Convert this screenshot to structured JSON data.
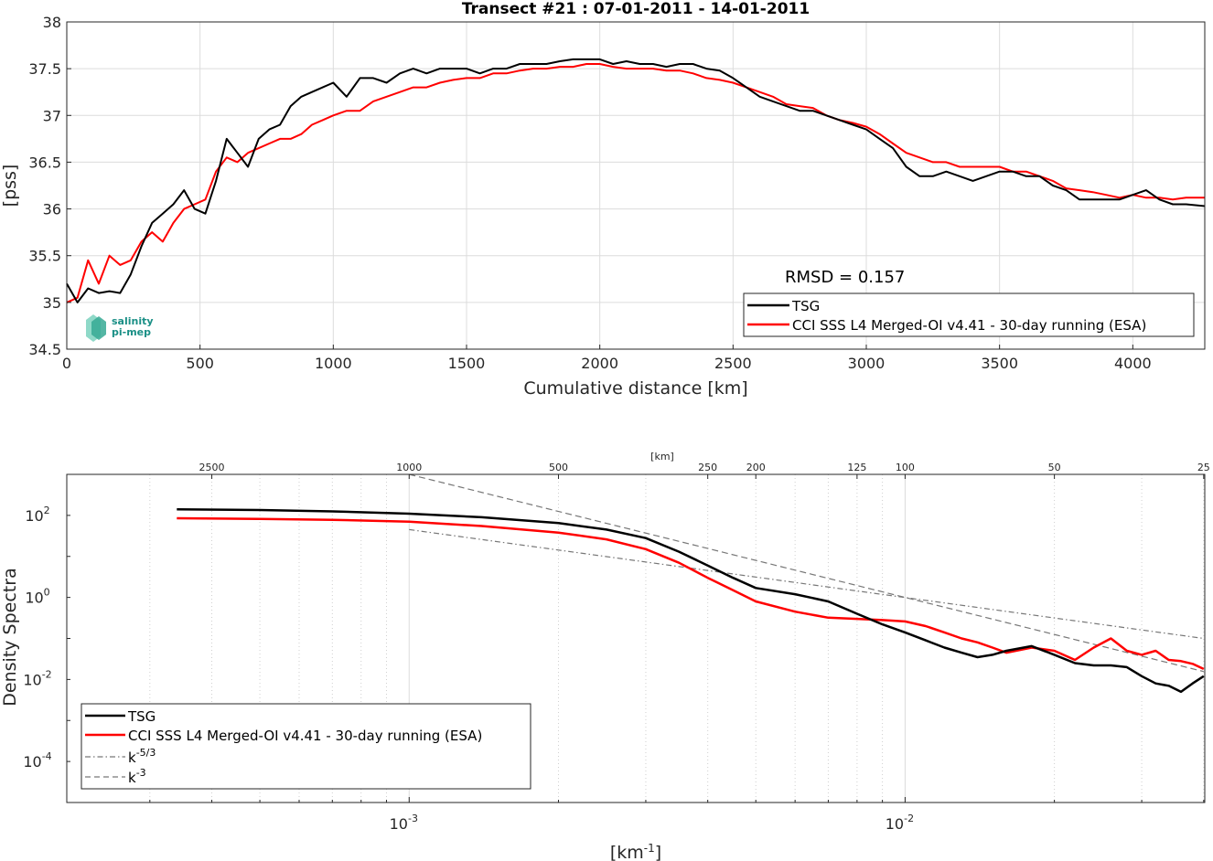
{
  "chart_data": [
    {
      "type": "line",
      "title": "Transect #21 : 07-01-2011 - 14-01-2011",
      "xlabel": "Cumulative distance [km]",
      "ylabel": "[pss]",
      "xlim": [
        0,
        4270
      ],
      "ylim": [
        34.5,
        38
      ],
      "xticks": [
        0,
        500,
        1000,
        1500,
        2000,
        2500,
        3000,
        3500,
        4000
      ],
      "yticks": [
        34.5,
        35,
        35.5,
        36,
        36.5,
        37,
        37.5,
        38
      ],
      "xtick_labels": [
        "0",
        "500",
        "1000",
        "1500",
        "2000",
        "2500",
        "3000",
        "3500",
        "4000"
      ],
      "ytick_labels": [
        "34.5",
        "35",
        "35.5",
        "36",
        "36.5",
        "37",
        "37.5",
        "38"
      ],
      "grid": true,
      "legend_position": "bottom-right",
      "annotation": "RMSD = 0.157",
      "logo_lines": [
        "salinity",
        "pi-mep"
      ],
      "series": [
        {
          "name": "TSG",
          "color": "#000000",
          "x": [
            0,
            40,
            80,
            120,
            160,
            200,
            240,
            280,
            320,
            360,
            400,
            440,
            480,
            520,
            560,
            600,
            640,
            680,
            720,
            760,
            800,
            840,
            880,
            920,
            960,
            1000,
            1050,
            1100,
            1150,
            1200,
            1250,
            1300,
            1350,
            1400,
            1450,
            1500,
            1550,
            1600,
            1650,
            1700,
            1750,
            1800,
            1850,
            1900,
            1950,
            2000,
            2050,
            2100,
            2150,
            2200,
            2250,
            2300,
            2350,
            2400,
            2450,
            2500,
            2550,
            2600,
            2650,
            2700,
            2750,
            2800,
            2850,
            2900,
            2950,
            3000,
            3050,
            3100,
            3150,
            3200,
            3250,
            3300,
            3350,
            3400,
            3450,
            3500,
            3550,
            3600,
            3650,
            3700,
            3750,
            3800,
            3850,
            3900,
            3950,
            4000,
            4050,
            4100,
            4150,
            4200,
            4270
          ],
          "y": [
            35.2,
            35.0,
            35.15,
            35.1,
            35.12,
            35.1,
            35.3,
            35.6,
            35.85,
            35.95,
            36.05,
            36.2,
            36.0,
            35.95,
            36.3,
            36.75,
            36.6,
            36.45,
            36.75,
            36.85,
            36.9,
            37.1,
            37.2,
            37.25,
            37.3,
            37.35,
            37.2,
            37.4,
            37.4,
            37.35,
            37.45,
            37.5,
            37.45,
            37.5,
            37.5,
            37.5,
            37.45,
            37.5,
            37.5,
            37.55,
            37.55,
            37.55,
            37.58,
            37.6,
            37.6,
            37.6,
            37.55,
            37.58,
            37.55,
            37.55,
            37.52,
            37.55,
            37.55,
            37.5,
            37.48,
            37.4,
            37.3,
            37.2,
            37.15,
            37.1,
            37.05,
            37.05,
            37.0,
            36.95,
            36.9,
            36.85,
            36.75,
            36.65,
            36.45,
            36.35,
            36.35,
            36.4,
            36.35,
            36.3,
            36.35,
            36.4,
            36.4,
            36.35,
            36.35,
            36.25,
            36.2,
            36.1,
            36.1,
            36.1,
            36.1,
            36.15,
            36.2,
            36.1,
            36.05,
            36.05,
            36.03
          ]
        },
        {
          "name": "CCI SSS L4 Merged-OI v4.41 - 30-day running (ESA)",
          "color": "#ff0000",
          "x": [
            0,
            40,
            80,
            120,
            160,
            200,
            240,
            280,
            320,
            360,
            400,
            440,
            480,
            520,
            560,
            600,
            640,
            680,
            720,
            760,
            800,
            840,
            880,
            920,
            960,
            1000,
            1050,
            1100,
            1150,
            1200,
            1250,
            1300,
            1350,
            1400,
            1450,
            1500,
            1550,
            1600,
            1650,
            1700,
            1750,
            1800,
            1850,
            1900,
            1950,
            2000,
            2050,
            2100,
            2150,
            2200,
            2250,
            2300,
            2350,
            2400,
            2450,
            2500,
            2550,
            2600,
            2650,
            2700,
            2750,
            2800,
            2850,
            2900,
            2950,
            3000,
            3050,
            3100,
            3150,
            3200,
            3250,
            3300,
            3350,
            3400,
            3450,
            3500,
            3550,
            3600,
            3650,
            3700,
            3750,
            3800,
            3850,
            3900,
            3950,
            4000,
            4050,
            4100,
            4150,
            4200,
            4270
          ],
          "y": [
            35.0,
            35.05,
            35.45,
            35.2,
            35.5,
            35.4,
            35.45,
            35.65,
            35.75,
            35.65,
            35.85,
            36.0,
            36.05,
            36.1,
            36.4,
            36.55,
            36.5,
            36.6,
            36.65,
            36.7,
            36.75,
            36.75,
            36.8,
            36.9,
            36.95,
            37.0,
            37.05,
            37.05,
            37.15,
            37.2,
            37.25,
            37.3,
            37.3,
            37.35,
            37.38,
            37.4,
            37.4,
            37.45,
            37.45,
            37.48,
            37.5,
            37.5,
            37.52,
            37.52,
            37.55,
            37.55,
            37.52,
            37.5,
            37.5,
            37.5,
            37.48,
            37.48,
            37.45,
            37.4,
            37.38,
            37.35,
            37.3,
            37.25,
            37.2,
            37.12,
            37.1,
            37.08,
            37.0,
            36.95,
            36.92,
            36.88,
            36.8,
            36.7,
            36.6,
            36.55,
            36.5,
            36.5,
            36.45,
            36.45,
            36.45,
            36.45,
            36.4,
            36.4,
            36.35,
            36.3,
            36.22,
            36.2,
            36.18,
            36.15,
            36.12,
            36.15,
            36.12,
            36.12,
            36.1,
            36.12,
            36.12
          ]
        }
      ]
    },
    {
      "type": "line",
      "xlabel": "[km⁻¹]",
      "ylabel": "Density Spectra",
      "x_scale": "log",
      "y_scale": "log",
      "xlim": [
        0.000204,
        0.0402
      ],
      "ylim": [
        1e-05,
        1000
      ],
      "xticks": [
        0.001,
        0.01
      ],
      "xtick_labels": [
        "10",
        "10"
      ],
      "xtick_exponents": [
        "-3",
        "-2"
      ],
      "yticks": [
        0.0001,
        0.01,
        1,
        100
      ],
      "ytick_labels": [
        "10",
        "10",
        "10",
        "10"
      ],
      "ytick_exponents": [
        "-4",
        "-2",
        "0",
        "2"
      ],
      "top_axis_label": "[km]",
      "top_ticks_km": [
        2500,
        1000,
        500,
        250,
        200,
        125,
        100,
        50,
        25
      ],
      "top_tick_labels": [
        "2500",
        "1000",
        "500",
        "250",
        "200",
        "125",
        "100",
        "50",
        "25"
      ],
      "grid": true,
      "legend_position": "bottom-left",
      "series": [
        {
          "name": "TSG",
          "color": "#000000",
          "x": [
            0.00034,
            0.0005,
            0.0007,
            0.001,
            0.0014,
            0.002,
            0.0025,
            0.003,
            0.0035,
            0.004,
            0.0045,
            0.005,
            0.006,
            0.007,
            0.008,
            0.009,
            0.01,
            0.011,
            0.012,
            0.013,
            0.014,
            0.015,
            0.016,
            0.018,
            0.02,
            0.022,
            0.024,
            0.026,
            0.028,
            0.03,
            0.032,
            0.034,
            0.036,
            0.038,
            0.04
          ],
          "y": [
            140,
            135,
            125,
            110,
            90,
            65,
            45,
            28,
            13,
            6,
            3,
            1.7,
            1.2,
            0.8,
            0.4,
            0.22,
            0.14,
            0.09,
            0.06,
            0.045,
            0.035,
            0.04,
            0.05,
            0.065,
            0.04,
            0.025,
            0.022,
            0.022,
            0.02,
            0.012,
            0.008,
            0.007,
            0.005,
            0.008,
            0.012
          ]
        },
        {
          "name": "CCI SSS L4 Merged-OI v4.41 - 30-day running (ESA)",
          "color": "#ff0000",
          "x": [
            0.00034,
            0.0005,
            0.0007,
            0.001,
            0.0014,
            0.002,
            0.0025,
            0.003,
            0.0035,
            0.004,
            0.0045,
            0.005,
            0.006,
            0.007,
            0.008,
            0.009,
            0.01,
            0.011,
            0.012,
            0.013,
            0.014,
            0.015,
            0.016,
            0.018,
            0.02,
            0.022,
            0.024,
            0.026,
            0.028,
            0.03,
            0.032,
            0.034,
            0.036,
            0.038,
            0.04
          ],
          "y": [
            85,
            82,
            78,
            70,
            55,
            38,
            26,
            15,
            7,
            3,
            1.5,
            0.8,
            0.45,
            0.32,
            0.3,
            0.28,
            0.26,
            0.2,
            0.14,
            0.1,
            0.08,
            0.06,
            0.045,
            0.06,
            0.05,
            0.03,
            0.06,
            0.1,
            0.05,
            0.04,
            0.05,
            0.03,
            0.028,
            0.024,
            0.018
          ]
        },
        {
          "name": "k⁻⁵ᐟ³",
          "color": "#777777",
          "x": [
            0.001,
            0.04
          ],
          "y": [
            45,
            0.1
          ]
        },
        {
          "name": "k⁻³",
          "color": "#777777",
          "x": [
            0.001,
            0.04
          ],
          "y": [
            1000,
            0.0156
          ]
        }
      ]
    }
  ],
  "legend_labels": {
    "tsg": "TSG",
    "cci": "CCI SSS L4 Merged-OI v4.41 - 30-day running (ESA)",
    "k53_base": "k",
    "k53_exp": "-5/3",
    "k3_base": "k",
    "k3_exp": "-3"
  },
  "bottom_xlabel": {
    "base": "[km",
    "exp": "-1",
    "close": "]"
  }
}
